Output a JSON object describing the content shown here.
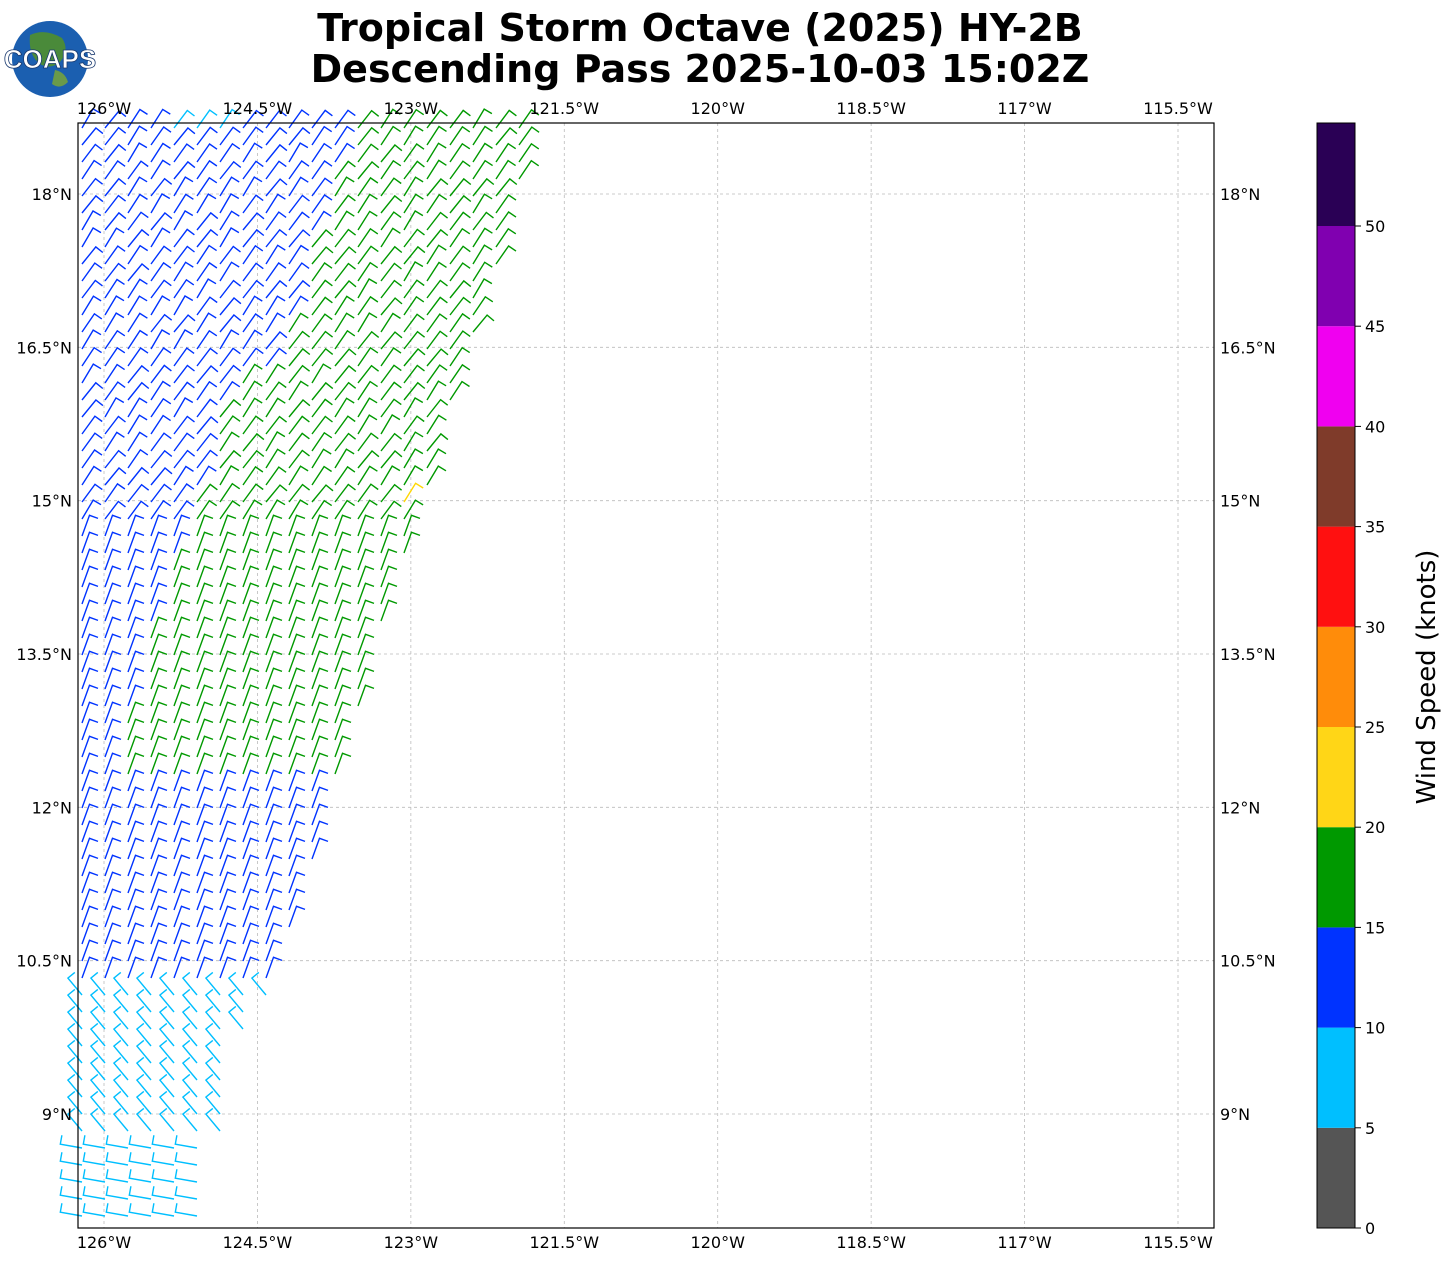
{
  "title": {
    "line1": "Tropical Storm Octave (2025) HY-2B",
    "line2": "Descending Pass 2025-10-03 15:02Z"
  },
  "logo": {
    "text": "COAPS",
    "icon": "globe-icon"
  },
  "map": {
    "lon_ticks": [
      "126°W",
      "124.5°W",
      "123°W",
      "121.5°W",
      "120°W",
      "118.5°W",
      "117°W",
      "115.5°W"
    ],
    "lat_ticks": [
      "18°N",
      "16.5°N",
      "15°N",
      "13.5°N",
      "12°N",
      "10.5°N",
      "9°N"
    ],
    "lon_values": [
      -126,
      -124.5,
      -123,
      -121.5,
      -120,
      -118.5,
      -117,
      -115.5
    ],
    "lat_values": [
      18,
      16.5,
      15,
      13.5,
      12,
      10.5,
      9
    ],
    "grid": "dashed",
    "barb_colors": {
      "cyan": "#00bfff",
      "blue": "#0033ff",
      "green": "#009900",
      "yellow": "#ffd700"
    }
  },
  "colorbar": {
    "label": "Wind Speed (knots)",
    "ticks": [
      "0",
      "5",
      "10",
      "15",
      "20",
      "25",
      "30",
      "35",
      "40",
      "45",
      "50"
    ],
    "colors": [
      "#555555",
      "#00bfff",
      "#0033ff",
      "#009900",
      "#ffd617",
      "#ff8c0a",
      "#ff1010",
      "#7f3b2a",
      "#f000f0",
      "#8000b0",
      "#2a0055"
    ]
  }
}
